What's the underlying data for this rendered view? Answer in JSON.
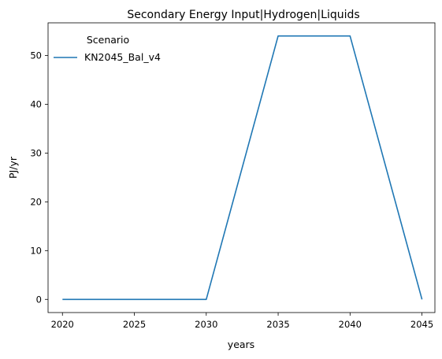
{
  "chart_data": {
    "type": "line",
    "title": "Secondary Energy Input|Hydrogen|Liquids",
    "xlabel": "years",
    "ylabel": "PJ/yr",
    "x": [
      2020,
      2025,
      2030,
      2035,
      2040,
      2045
    ],
    "x_ticks": [
      "2020",
      "2025",
      "2030",
      "2035",
      "2040",
      "2045"
    ],
    "y_ticks": [
      "0",
      "10",
      "20",
      "30",
      "40",
      "50"
    ],
    "xlim": [
      2019.0,
      2045.9
    ],
    "ylim": [
      -2.7,
      56.7
    ],
    "grid": false,
    "legend": {
      "title": "Scenario",
      "placement": "top-left"
    },
    "series": [
      {
        "name": "KN2045_Bal_v4",
        "color": "#1f77b4",
        "values": [
          0,
          0,
          0,
          54,
          54,
          0
        ]
      }
    ]
  }
}
